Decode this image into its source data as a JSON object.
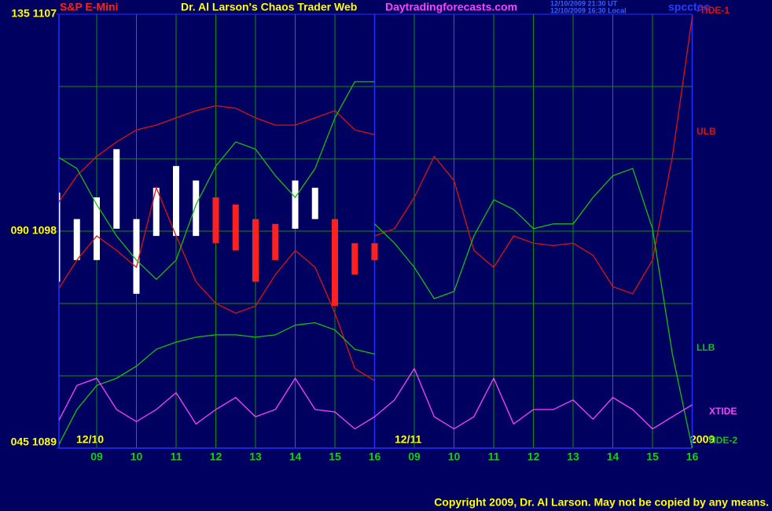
{
  "chart_data": {
    "type": "line",
    "title": "S&P E-Mini",
    "subtitle": "Dr. Al Larson's Chaos Trader Web",
    "site": "Daytradingforecasts.com",
    "timestamps": [
      "12/10/2009 21:30 UT",
      "12/10/2009 16:30 Local"
    ],
    "symbol": "spcctoc",
    "date_labels": [
      "12/10",
      "12/11",
      "2009"
    ],
    "copyright": "Copyright 2009, Dr. Al Larson. May not be copied by any means.",
    "categories": [
      null,
      null,
      "09",
      null,
      "10",
      null,
      "11",
      null,
      "12",
      null,
      "13",
      null,
      "14",
      null,
      "15",
      null,
      "16",
      null,
      "09",
      null,
      "10",
      null,
      "11",
      null,
      "12",
      null,
      "13",
      null,
      "14",
      null,
      "15",
      null,
      "16"
    ],
    "ylim": [
      1089,
      1107
    ],
    "yticks": [
      {
        "value": 1089,
        "label": "045 1089"
      },
      {
        "value": 1098,
        "label": "090 1098"
      },
      {
        "value": 1107,
        "label": "135 1107"
      }
    ],
    "ygrid": [
      1092,
      1095,
      1098,
      1101,
      1104
    ],
    "grid": true,
    "series": [
      {
        "name": "ULB",
        "color": "#e01010",
        "values": [
          1099.1,
          1100.3,
          1101.1,
          1101.7,
          1102.2,
          1102.4,
          1102.7,
          1103.0,
          1103.2,
          1103.1,
          1102.7,
          1102.4,
          1102.4,
          1102.7,
          1103.0,
          1102.2,
          1102.0,
          null,
          null,
          null,
          null,
          null,
          null,
          null,
          null,
          null,
          null,
          null,
          null,
          null,
          null,
          null,
          null
        ]
      },
      {
        "color": "#e01010",
        "values": [
          1095.5,
          1096.8,
          1097.8,
          1097.2,
          1096.5,
          1099.8,
          1097.8,
          1095.9,
          1095.0,
          1094.6,
          1094.9,
          1096.2,
          1097.2,
          1096.5,
          1094.6,
          1092.3,
          1091.8,
          null,
          null,
          null,
          null,
          null,
          null,
          null,
          null,
          null,
          null,
          null,
          null,
          null,
          null,
          null,
          null
        ]
      },
      {
        "color": "#10c010",
        "values": [
          1101.1,
          1100.6,
          1099.1,
          1097.8,
          1096.8,
          1096.0,
          1096.8,
          1099.1,
          1100.7,
          1101.7,
          1101.4,
          1100.3,
          1099.4,
          1100.6,
          1102.7,
          1104.2,
          1104.2,
          null,
          null,
          null,
          null,
          null,
          null,
          null,
          null,
          null,
          null,
          null,
          null,
          null,
          null,
          null,
          null
        ]
      },
      {
        "name": "LLB",
        "color": "#10c010",
        "values": [
          1089.0,
          1090.6,
          1091.6,
          1091.9,
          1092.4,
          1093.1,
          1093.4,
          1093.6,
          1093.7,
          1093.7,
          1093.6,
          1093.7,
          1094.1,
          1094.2,
          1093.9,
          1093.1,
          1092.9,
          null,
          null,
          null,
          null,
          null,
          null,
          null,
          null,
          null,
          null,
          null,
          null,
          null,
          null,
          null,
          null
        ]
      },
      {
        "name": "-TIDE-1",
        "color": "#e01010",
        "values": [
          null,
          null,
          null,
          null,
          null,
          null,
          null,
          null,
          null,
          null,
          null,
          null,
          null,
          null,
          null,
          null,
          1097.8,
          1098.1,
          1099.4,
          1101.1,
          1100.1,
          1097.2,
          1096.5,
          1097.8,
          1097.5,
          1097.4,
          1097.5,
          1097.0,
          1095.7,
          1095.4,
          1096.8,
          1101.1,
          1106.9
        ]
      },
      {
        "name": "TIDE-2",
        "color": "#10c010",
        "values": [
          null,
          null,
          null,
          null,
          null,
          null,
          null,
          null,
          null,
          null,
          null,
          null,
          null,
          null,
          null,
          null,
          1098.3,
          1097.5,
          1096.5,
          1095.2,
          1095.5,
          1097.8,
          1099.3,
          1098.9,
          1098.1,
          1098.3,
          1098.3,
          1099.4,
          1100.3,
          1100.6,
          1098.1,
          1092.9,
          1089.0
        ]
      },
      {
        "name": "XTIDE",
        "color": "#ff40ff",
        "values": [
          1090.0,
          1091.6,
          1091.9,
          1090.6,
          1090.1,
          1090.6,
          1091.3,
          1090.0,
          1090.6,
          1091.1,
          1090.3,
          1090.6,
          1091.9,
          1090.6,
          1090.5,
          1089.8,
          1090.3,
          1091.0,
          1092.3,
          1090.3,
          1089.8,
          1090.3,
          1091.9,
          1090.0,
          1090.6,
          1090.6,
          1091.0,
          1090.2,
          1091.1,
          1090.6,
          1089.8,
          1090.3,
          1090.8
        ]
      }
    ],
    "price": {
      "high": [
        1099.6,
        1098.5,
        1099.4,
        1101.4,
        1098.5,
        1099.8,
        1100.7,
        1100.1,
        1099.4,
        1099.1,
        1098.5,
        1098.3,
        1100.1,
        1099.8,
        1098.5,
        1097.5,
        1097.5
      ],
      "low": [
        1095.9,
        1096.8,
        1096.8,
        1098.1,
        1095.4,
        1097.8,
        1097.8,
        1097.8,
        1097.5,
        1097.2,
        1095.9,
        1096.8,
        1098.1,
        1098.5,
        1094.9,
        1096.2,
        1096.8
      ],
      "colors": [
        "#ffffff",
        "#ffffff",
        "#ffffff",
        "#ffffff",
        "#ffffff",
        "#ffffff",
        "#ffffff",
        "#ffffff",
        "#ff2020",
        "#ff2020",
        "#ff2020",
        "#ff2020",
        "#ffffff",
        "#ffffff",
        "#ff2020",
        "#ff2020",
        "#ff2020"
      ]
    }
  }
}
